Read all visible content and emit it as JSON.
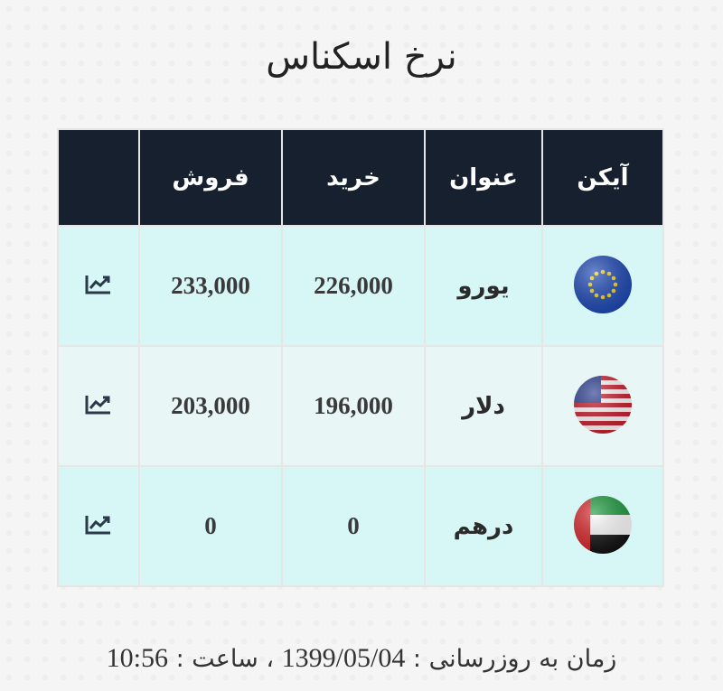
{
  "page": {
    "title": "نرخ اسکناس"
  },
  "table": {
    "headers": {
      "icon": "آیکن",
      "title": "عنوان",
      "buy": "خرید",
      "sell": "فروش",
      "chart": ""
    },
    "rows": [
      {
        "icon": "eu-flag-icon",
        "name": "یورو",
        "buy": "226,000",
        "sell": "233,000"
      },
      {
        "icon": "us-flag-icon",
        "name": "دلار",
        "buy": "196,000",
        "sell": "203,000"
      },
      {
        "icon": "uae-flag-icon",
        "name": "درهم",
        "buy": "0",
        "sell": "0"
      }
    ]
  },
  "footer": {
    "update_label": "زمان به روزرسانی :",
    "date": "1399/05/04",
    "separator": "،",
    "time_label": "ساعت :",
    "time": "10:56"
  },
  "colors": {
    "header_bg": "#17202e",
    "row_odd": "#d7f7f7",
    "row_even": "#e8f6f6"
  }
}
